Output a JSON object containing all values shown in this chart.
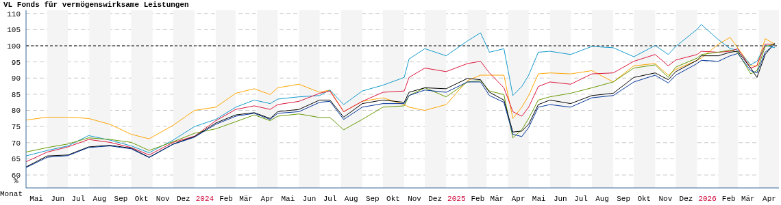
{
  "chart_data": {
    "type": "line",
    "title": "VL Fonds für vermögenswirksame Leistungen",
    "xlabel": "Monat",
    "ylabel": "%",
    "x": [
      "2023-05-01",
      "2023-06-01",
      "2023-07-01",
      "2023-07-31",
      "2023-08-31",
      "2023-10-01",
      "2023-10-27",
      "2023-12-01",
      "2024-01-01",
      "2024-02-01",
      "2024-03-01",
      "2024-03-28",
      "2024-04-20",
      "2024-05-01",
      "2024-06-01",
      "2024-07-01",
      "2024-07-16",
      "2024-08-05",
      "2024-09-01",
      "2024-10-01",
      "2024-11-01",
      "2024-11-08",
      "2024-12-01",
      "2025-01-01",
      "2025-02-01",
      "2025-02-20",
      "2025-03-05",
      "2025-03-26",
      "2025-04-08",
      "2025-04-21",
      "2025-05-01",
      "2025-05-15",
      "2025-06-01",
      "2025-07-01",
      "2025-08-01",
      "2025-09-01",
      "2025-10-01",
      "2025-11-01",
      "2025-11-20",
      "2025-12-01",
      "2026-01-01",
      "2026-01-07",
      "2026-02-01",
      "2026-02-18",
      "2026-03-01",
      "2026-03-20",
      "2026-03-29",
      "2026-04-10",
      "2026-04-24"
    ],
    "series": [
      {
        "color": "#ffa500",
        "values": [
          77.0,
          77.9,
          77.9,
          77.5,
          75.7,
          72.6,
          71.2,
          75.4,
          80.0,
          81.0,
          85.3,
          86.7,
          84.9,
          87.0,
          88.1,
          85.6,
          86.3,
          79.6,
          82.8,
          83.9,
          81.8,
          81.0,
          80.0,
          81.8,
          89.2,
          90.9,
          90.9,
          90.9,
          77.5,
          81.0,
          84.6,
          91.3,
          91.6,
          91.3,
          92.3,
          88.8,
          93.8,
          94.5,
          90.9,
          92.7,
          95.5,
          96.2,
          100.5,
          102.6,
          99.4,
          93.8,
          93.8,
          102.2,
          100.5
        ]
      },
      {
        "color": "#1199cc",
        "values": [
          65.9,
          67.6,
          69.0,
          72.2,
          70.8,
          69.0,
          66.9,
          70.8,
          75.0,
          77.2,
          81.0,
          83.2,
          82.1,
          83.5,
          84.2,
          84.6,
          86.3,
          81.8,
          86.0,
          87.8,
          90.2,
          95.9,
          99.1,
          96.9,
          101.5,
          104.0,
          98.0,
          99.1,
          84.6,
          87.4,
          90.9,
          98.0,
          98.3,
          97.3,
          99.8,
          99.4,
          96.6,
          100.1,
          97.3,
          99.8,
          105.1,
          106.6,
          101.9,
          99.1,
          98.7,
          94.1,
          95.2,
          100.1,
          99.4
        ]
      },
      {
        "color": "#dc143c",
        "values": [
          64.1,
          67.1,
          68.7,
          71.0,
          70.1,
          68.5,
          66.2,
          70.1,
          72.0,
          76.8,
          80.3,
          81.4,
          80.3,
          81.8,
          82.8,
          85.3,
          86.0,
          79.6,
          82.8,
          85.6,
          86.0,
          90.2,
          93.1,
          92.0,
          94.5,
          95.2,
          91.6,
          87.0,
          79.6,
          78.2,
          81.0,
          87.4,
          88.8,
          88.1,
          91.3,
          91.6,
          95.2,
          97.3,
          93.8,
          95.6,
          97.3,
          98.3,
          98.0,
          98.3,
          99.1,
          93.1,
          93.8,
          100.5,
          100.5
        ]
      },
      {
        "color": "#669900",
        "values": [
          67.1,
          68.5,
          69.6,
          71.5,
          71.0,
          70.1,
          67.6,
          70.3,
          72.9,
          74.3,
          76.5,
          78.6,
          76.8,
          78.2,
          78.9,
          77.8,
          77.8,
          74.0,
          77.2,
          81.0,
          81.4,
          84.6,
          87.0,
          84.2,
          88.8,
          89.2,
          86.0,
          84.9,
          71.5,
          74.0,
          77.5,
          83.2,
          84.2,
          85.3,
          87.0,
          88.8,
          93.1,
          94.1,
          90.2,
          93.4,
          96.2,
          97.3,
          98.0,
          98.7,
          98.0,
          91.3,
          92.3,
          99.8,
          100.5
        ]
      },
      {
        "color": "#000000",
        "values": [
          62.5,
          65.9,
          66.2,
          68.7,
          69.2,
          68.3,
          65.5,
          69.6,
          71.9,
          76.1,
          78.6,
          79.3,
          77.5,
          79.6,
          80.3,
          83.2,
          83.2,
          77.9,
          82.1,
          83.2,
          82.5,
          85.6,
          87.0,
          86.7,
          89.9,
          89.5,
          85.6,
          83.2,
          73.3,
          73.6,
          75.7,
          81.8,
          83.2,
          82.1,
          84.6,
          85.3,
          90.2,
          91.6,
          89.5,
          92.0,
          95.5,
          96.9,
          96.9,
          98.0,
          98.3,
          93.1,
          90.2,
          97.3,
          100.8
        ]
      },
      {
        "color": "#003399",
        "values": [
          62.3,
          65.5,
          66.0,
          68.5,
          69.0,
          68.1,
          65.4,
          69.5,
          71.7,
          75.7,
          78.2,
          79.1,
          77.2,
          79.1,
          79.6,
          82.5,
          82.8,
          77.2,
          81.0,
          82.1,
          82.1,
          84.6,
          86.3,
          85.6,
          88.8,
          88.8,
          84.6,
          82.5,
          72.6,
          71.9,
          74.7,
          81.0,
          81.8,
          81.0,
          83.9,
          84.6,
          88.8,
          90.9,
          88.5,
          90.9,
          94.5,
          95.5,
          95.2,
          96.9,
          97.6,
          92.3,
          91.6,
          98.0,
          100.5
        ]
      }
    ],
    "xlim": [
      "2023-05-01",
      "2026-04-30"
    ],
    "xticks": [
      {
        "value": "2023-05-16",
        "label": "Mai"
      },
      {
        "value": "2023-06-16",
        "label": "Jun"
      },
      {
        "value": "2023-07-16",
        "label": "Jul"
      },
      {
        "value": "2023-08-16",
        "label": "Aug"
      },
      {
        "value": "2023-09-16",
        "label": "Sep"
      },
      {
        "value": "2023-10-16",
        "label": "Okt"
      },
      {
        "value": "2023-11-16",
        "label": "Nov"
      },
      {
        "value": "2023-12-16",
        "label": "Dez"
      },
      {
        "value": "2024-01-16",
        "label": "2024"
      },
      {
        "value": "2024-02-16",
        "label": "Feb"
      },
      {
        "value": "2024-03-16",
        "label": "Mär"
      },
      {
        "value": "2024-04-16",
        "label": "Apr"
      },
      {
        "value": "2024-05-16",
        "label": "Mai"
      },
      {
        "value": "2024-06-16",
        "label": "Jun"
      },
      {
        "value": "2024-07-16",
        "label": "Jul"
      },
      {
        "value": "2024-08-16",
        "label": "Aug"
      },
      {
        "value": "2024-09-16",
        "label": "Sep"
      },
      {
        "value": "2024-10-16",
        "label": "Okt"
      },
      {
        "value": "2024-11-16",
        "label": "Nov"
      },
      {
        "value": "2024-12-16",
        "label": "Dez"
      },
      {
        "value": "2025-01-16",
        "label": "2025"
      },
      {
        "value": "2025-02-16",
        "label": "Feb"
      },
      {
        "value": "2025-03-16",
        "label": "Mär"
      },
      {
        "value": "2025-04-16",
        "label": "Apr"
      },
      {
        "value": "2025-05-16",
        "label": "Mai"
      },
      {
        "value": "2025-06-16",
        "label": "Jun"
      },
      {
        "value": "2025-07-16",
        "label": "Jul"
      },
      {
        "value": "2025-08-16",
        "label": "Aug"
      },
      {
        "value": "2025-09-16",
        "label": "Sep"
      },
      {
        "value": "2025-10-16",
        "label": "Okt"
      },
      {
        "value": "2025-11-16",
        "label": "Nov"
      },
      {
        "value": "2025-12-16",
        "label": "Dez"
      },
      {
        "value": "2026-01-16",
        "label": "2026"
      },
      {
        "value": "2026-02-16",
        "label": "Feb"
      },
      {
        "value": "2026-03-16",
        "label": "Mär"
      },
      {
        "value": "2026-04-16",
        "label": "Apr"
      }
    ],
    "ylim": [
      56,
      111
    ],
    "yticks": [
      60,
      65,
      70,
      75,
      80,
      85,
      90,
      95,
      100,
      105,
      110
    ],
    "grid": "y",
    "marker": "none",
    "line_style": "solid",
    "ref_lines": [
      {
        "axis": "y",
        "value": 100,
        "color": "#000000",
        "line_style": "dashed"
      }
    ],
    "bands": [
      {
        "axis": "x",
        "from": "2023-06-01",
        "to": "2023-07-01",
        "color": "#f4f4f4"
      },
      {
        "axis": "x",
        "from": "2023-08-01",
        "to": "2023-09-01",
        "color": "#f4f4f4"
      },
      {
        "axis": "x",
        "from": "2023-10-01",
        "to": "2023-11-01",
        "color": "#f4f4f4"
      },
      {
        "axis": "x",
        "from": "2023-12-01",
        "to": "2024-01-01",
        "color": "#f4f4f4"
      },
      {
        "axis": "x",
        "from": "2024-02-01",
        "to": "2024-03-01",
        "color": "#f4f4f4"
      },
      {
        "axis": "x",
        "from": "2024-04-01",
        "to": "2024-05-01",
        "color": "#f4f4f4"
      },
      {
        "axis": "x",
        "from": "2024-06-01",
        "to": "2024-07-01",
        "color": "#f4f4f4"
      },
      {
        "axis": "x",
        "from": "2024-08-01",
        "to": "2024-09-01",
        "color": "#f4f4f4"
      },
      {
        "axis": "x",
        "from": "2024-10-01",
        "to": "2024-11-01",
        "color": "#f4f4f4"
      },
      {
        "axis": "x",
        "from": "2024-12-01",
        "to": "2025-01-01",
        "color": "#f4f4f4"
      },
      {
        "axis": "x",
        "from": "2025-02-01",
        "to": "2025-03-01",
        "color": "#f4f4f4"
      },
      {
        "axis": "x",
        "from": "2025-04-01",
        "to": "2025-05-01",
        "color": "#f4f4f4"
      },
      {
        "axis": "x",
        "from": "2025-06-01",
        "to": "2025-07-01",
        "color": "#f4f4f4"
      },
      {
        "axis": "x",
        "from": "2025-08-01",
        "to": "2025-09-01",
        "color": "#f4f4f4"
      },
      {
        "axis": "x",
        "from": "2025-10-01",
        "to": "2025-11-01",
        "color": "#f4f4f4"
      },
      {
        "axis": "x",
        "from": "2025-12-01",
        "to": "2026-01-01",
        "color": "#f4f4f4"
      },
      {
        "axis": "x",
        "from": "2026-02-01",
        "to": "2026-03-01",
        "color": "#f4f4f4"
      },
      {
        "axis": "x",
        "from": "2026-04-01",
        "to": "2026-04-30",
        "color": "#f4f4f4"
      }
    ]
  }
}
